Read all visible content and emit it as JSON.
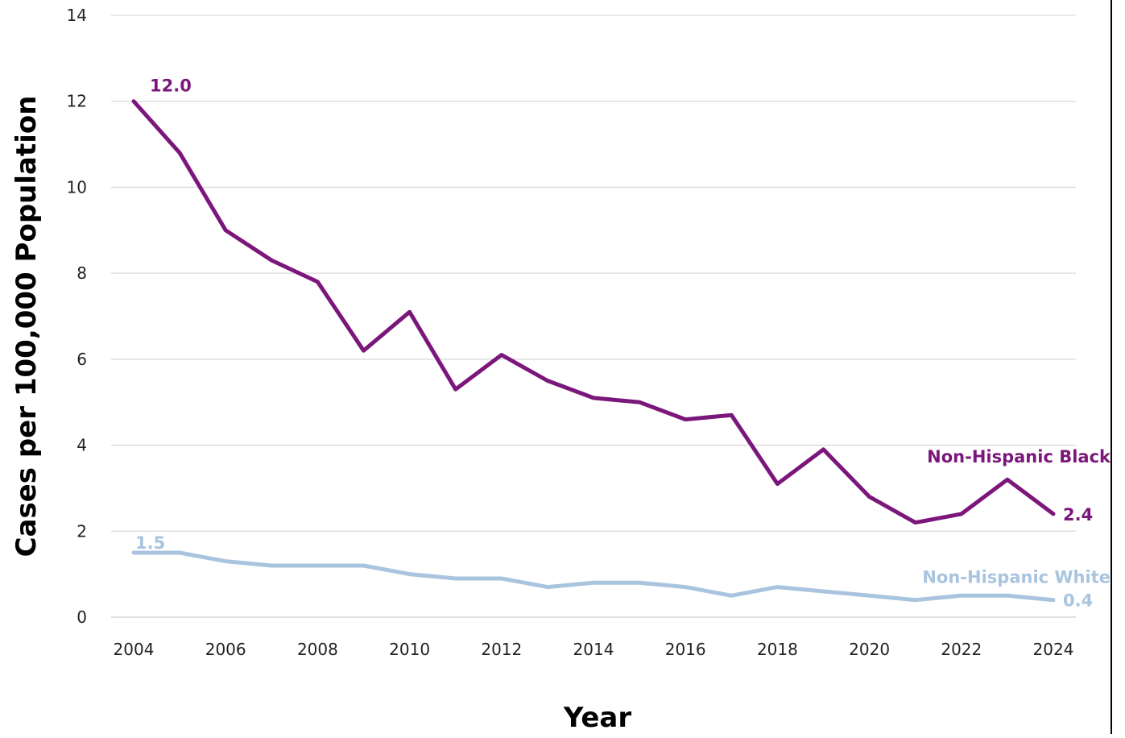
{
  "chart_data": {
    "type": "line",
    "title": "",
    "xlabel": "Year",
    "ylabel": "Cases per 100,000 Population",
    "x": [
      2004,
      2005,
      2006,
      2007,
      2008,
      2009,
      2010,
      2011,
      2012,
      2013,
      2014,
      2015,
      2016,
      2017,
      2018,
      2019,
      2020,
      2021,
      2022,
      2023,
      2024
    ],
    "xticks": [
      "2004",
      "2006",
      "2008",
      "2010",
      "2012",
      "2014",
      "2016",
      "2018",
      "2020",
      "2022",
      "2024"
    ],
    "yticks": [
      "0",
      "2",
      "4",
      "6",
      "8",
      "10",
      "12",
      "14"
    ],
    "xlim": [
      2004,
      2024
    ],
    "ylim": [
      0,
      14
    ],
    "grid": true,
    "legend": "none",
    "series": [
      {
        "name": "Non-Hispanic Black",
        "color": "#7b177b",
        "values": [
          12.0,
          10.8,
          9.0,
          8.3,
          7.8,
          6.2,
          7.1,
          5.3,
          6.1,
          5.5,
          5.1,
          5.0,
          4.6,
          4.7,
          3.1,
          3.9,
          2.8,
          2.2,
          2.4,
          3.2,
          2.4
        ],
        "start_label": "12.0",
        "end_label": "2.4"
      },
      {
        "name": "Non-Hispanic White",
        "color": "#a9c4df",
        "values": [
          1.5,
          1.5,
          1.3,
          1.2,
          1.2,
          1.2,
          1.0,
          0.9,
          0.9,
          0.7,
          0.8,
          0.8,
          0.7,
          0.5,
          0.7,
          0.6,
          0.5,
          0.4,
          0.5,
          0.5,
          0.4
        ],
        "start_label": "1.5",
        "end_label": "0.4"
      }
    ]
  }
}
